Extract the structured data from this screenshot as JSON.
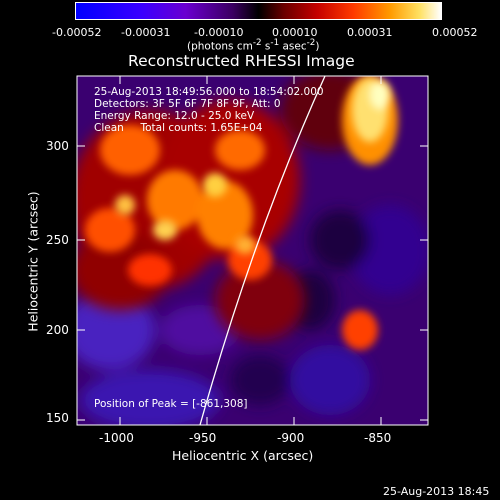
{
  "colorbar": {
    "ticks": [
      "-0.00052",
      "-0.00031",
      "-0.00010",
      "0.00010",
      "0.00031",
      "0.00052"
    ],
    "units_html": "(photons cm<sup>-2</sup> s<sup>-1</sup> asec<sup>-2</sup>)"
  },
  "title": "Reconstructed RHESSI Image",
  "annotations": {
    "line1": "25-Aug-2013 18:49:56.000 to 18:54:02.000",
    "line2": "Detectors: 3F 5F 6F 7F 8F 9F, Att: 0",
    "line3": "Energy Range: 12.0 - 25.0 keV",
    "line4": "Clean     Total counts: 1.65E+04",
    "peak": "Position of Peak = [-861,308]"
  },
  "axes": {
    "xlabel": "Heliocentric X (arcsec)",
    "ylabel": "Heliocentric Y (arcsec)",
    "xticks": [
      "-1000",
      "-950",
      "-900",
      "-850"
    ],
    "yticks": [
      "300",
      "250",
      "200",
      "150"
    ]
  },
  "footer": "25-Aug-2013 18:45",
  "colors": {
    "background": "#000000",
    "limb": "#ffffff"
  }
}
